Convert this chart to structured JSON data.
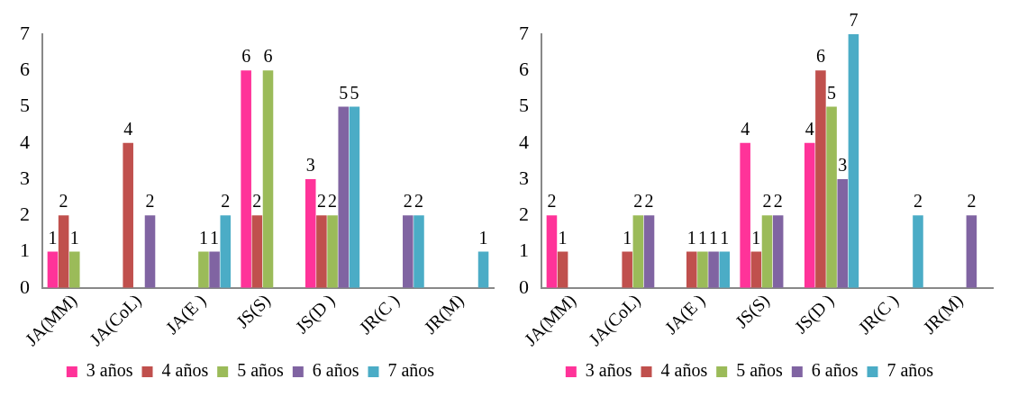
{
  "chart_data": [
    {
      "type": "bar",
      "categories": [
        "JA(MM)",
        "JA(CoL)",
        "JA(E )",
        "JS(S)",
        "JS(D )",
        "JR(C )",
        "JR(M)"
      ],
      "ylim": [
        0,
        7
      ],
      "yticks": [
        0,
        1,
        2,
        3,
        4,
        5,
        6,
        7
      ],
      "grid": false,
      "legend": "bottom",
      "data_labels": true,
      "series": [
        {
          "name": "3 años",
          "color": "#ff3399",
          "values": [
            1,
            null,
            null,
            6,
            3,
            null,
            null
          ]
        },
        {
          "name": "4 años",
          "color": "#c0504d",
          "values": [
            2,
            4,
            null,
            2,
            2,
            null,
            null
          ]
        },
        {
          "name": "5 años",
          "color": "#9bbb59",
          "values": [
            1,
            null,
            1,
            6,
            2,
            null,
            null
          ]
        },
        {
          "name": "6 años",
          "color": "#8064a2",
          "values": [
            null,
            2,
            1,
            null,
            5,
            2,
            null
          ]
        },
        {
          "name": "7 años",
          "color": "#4bacc6",
          "values": [
            null,
            null,
            2,
            null,
            5,
            2,
            1
          ]
        }
      ]
    },
    {
      "type": "bar",
      "categories": [
        "JA(MM)",
        "JA(CoL)",
        "JA(E )",
        "JS(S)",
        "JS(D )",
        "JR(C )",
        "JR(M)"
      ],
      "ylim": [
        0,
        7
      ],
      "yticks": [
        0,
        1,
        2,
        3,
        4,
        5,
        6,
        7
      ],
      "grid": false,
      "legend": "bottom",
      "data_labels": true,
      "series": [
        {
          "name": "3 años",
          "color": "#ff3399",
          "values": [
            2,
            null,
            null,
            4,
            4,
            null,
            null
          ]
        },
        {
          "name": "4 años",
          "color": "#c0504d",
          "values": [
            1,
            1,
            1,
            1,
            6,
            null,
            null
          ]
        },
        {
          "name": "5 años",
          "color": "#9bbb59",
          "values": [
            null,
            2,
            1,
            2,
            5,
            null,
            null
          ]
        },
        {
          "name": "6 años",
          "color": "#8064a2",
          "values": [
            null,
            2,
            1,
            2,
            3,
            null,
            2
          ]
        },
        {
          "name": "7 años",
          "color": "#4bacc6",
          "values": [
            null,
            null,
            1,
            null,
            7,
            2,
            null
          ]
        }
      ]
    }
  ]
}
